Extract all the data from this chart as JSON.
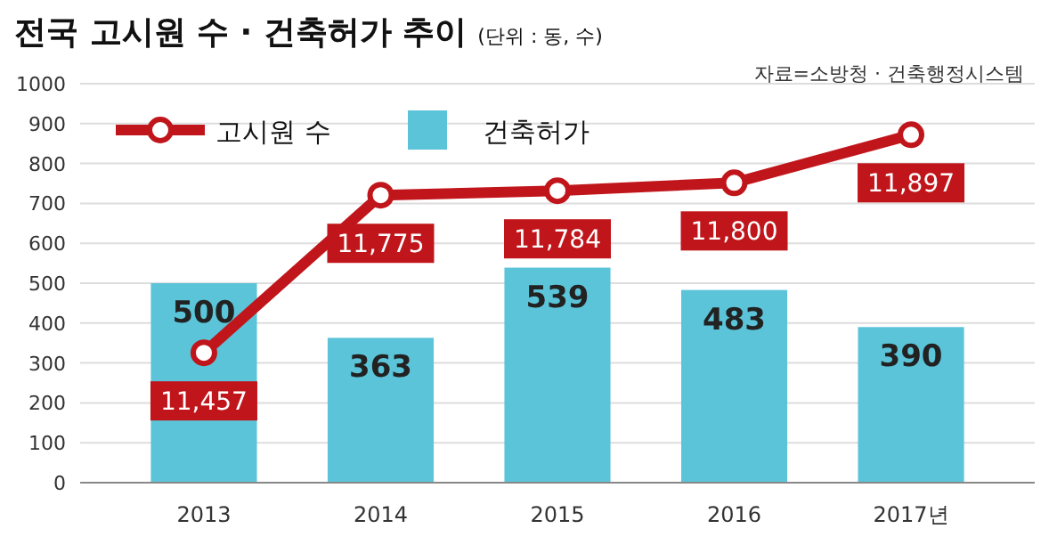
{
  "chart_data": {
    "type": "bar",
    "title": "전국 고시원 수 · 건축허가 추이",
    "subtitle": "(단위 : 동, 수)",
    "annotations": [
      "자료=소방청 · 건축행정시스템"
    ],
    "categories": [
      "2013",
      "2014",
      "2015",
      "2016",
      "2017년"
    ],
    "series": [
      {
        "name": "고시원 수",
        "type": "line",
        "axis": "y2",
        "color": "#c0161b",
        "values": [
          11457,
          11775,
          11784,
          11800,
          11897
        ],
        "value_labels": [
          "11,457",
          "11,775",
          "11,784",
          "11,800",
          "11,897"
        ]
      },
      {
        "name": "건축허가",
        "color": "#5bc4d9",
        "values": [
          500,
          363,
          539,
          483,
          390
        ]
      }
    ],
    "ylim": [
      0,
      1000
    ],
    "yticks": [
      0,
      100,
      200,
      300,
      400,
      500,
      600,
      700,
      800,
      900,
      1000
    ],
    "y2lim": [
      11195,
      12000
    ],
    "grid": "y",
    "legend": "top left",
    "marker": "circle",
    "data_labels": true
  }
}
